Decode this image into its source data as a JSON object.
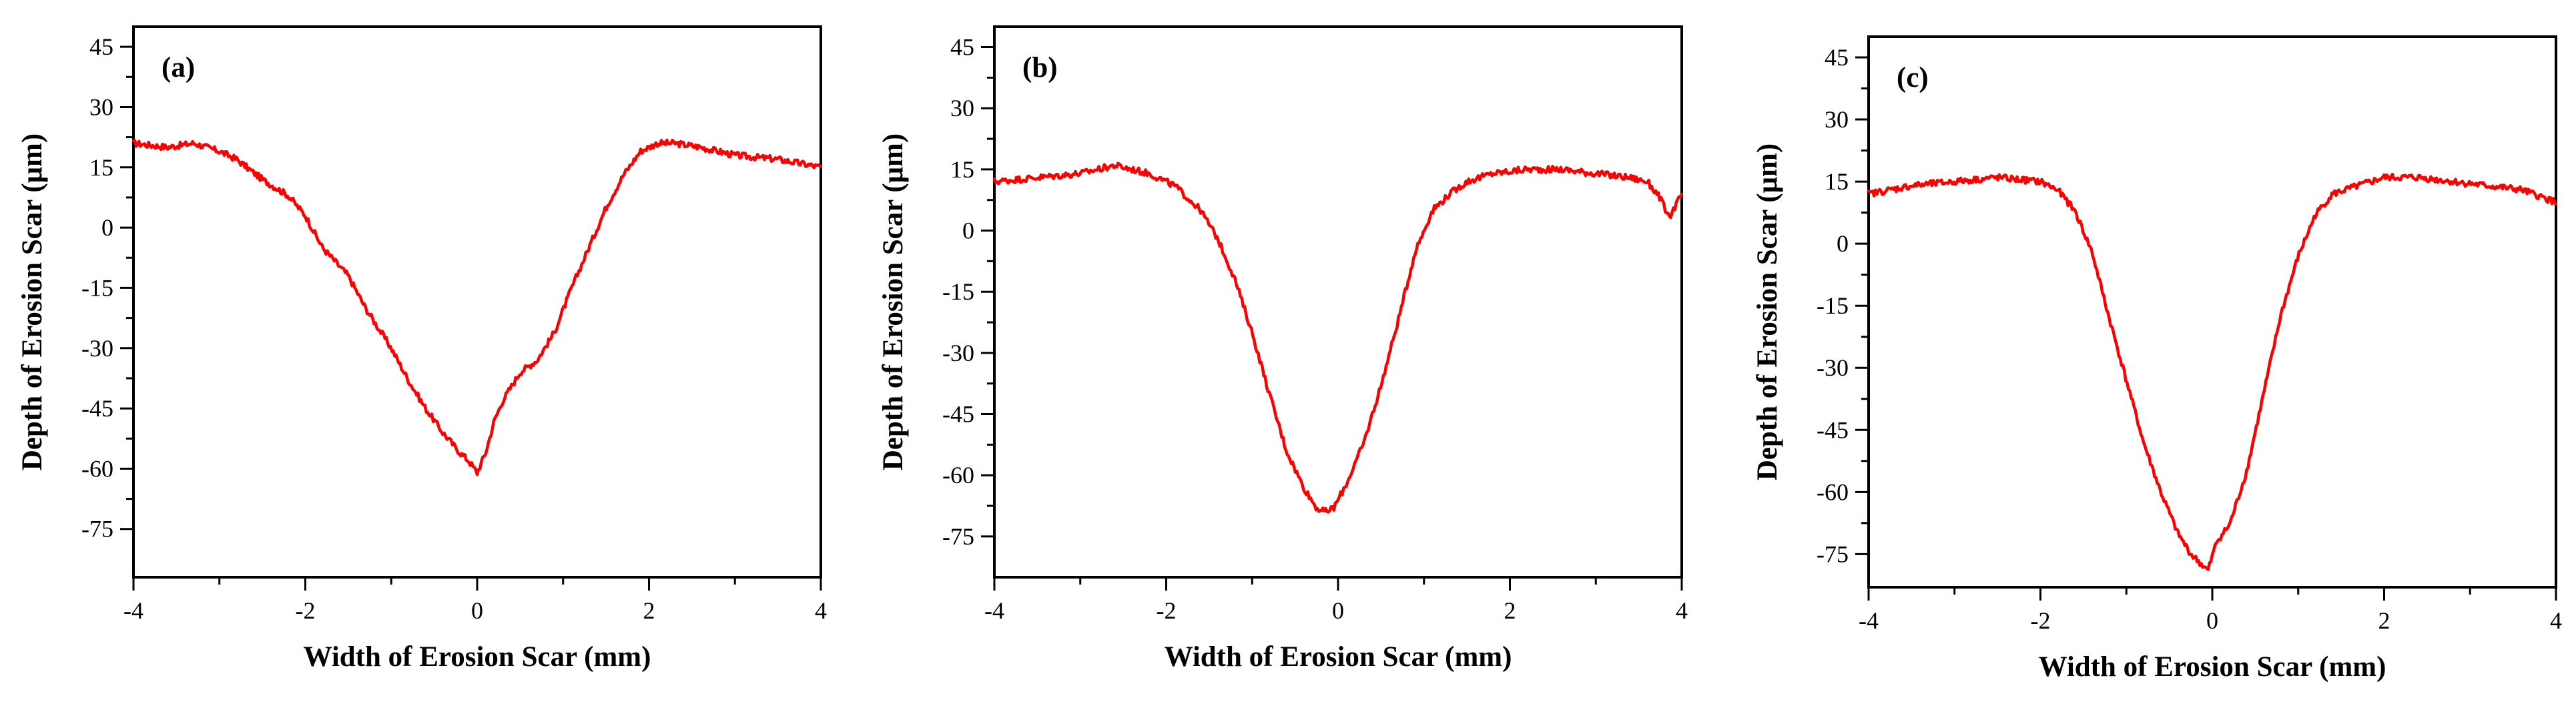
{
  "chart_data": [
    {
      "type": "line",
      "panel_label": "(a)",
      "xlabel": "Width of Erosion Scar (mm)",
      "ylabel": "Depth of Erosion Scar (μm)",
      "xlim": [
        -4,
        4
      ],
      "ylim": [
        -87,
        50
      ],
      "xticks": [
        -4,
        -2,
        0,
        2,
        4
      ],
      "yticks": [
        45,
        30,
        15,
        0,
        -15,
        -30,
        -45,
        -60,
        -75
      ],
      "color": "#ff0000",
      "series": [
        {
          "x": [
            -4.0,
            -3.6,
            -3.3,
            -3.0,
            -2.8,
            -2.5,
            -2.2,
            -2.0,
            -1.8,
            -1.5,
            -1.3,
            -1.0,
            -0.8,
            -0.6,
            -0.4,
            -0.2,
            -0.1,
            0.0,
            0.1,
            0.2,
            0.3,
            0.5,
            0.7,
            0.9,
            1.1,
            1.3,
            1.5,
            1.7,
            1.9,
            2.1,
            2.3,
            2.6,
            3.0,
            3.5,
            4.0
          ],
          "y": [
            21,
            20,
            21,
            19,
            17,
            12,
            8,
            3,
            -5,
            -12,
            -20,
            -30,
            -38,
            -45,
            -51,
            -56,
            -58,
            -61,
            -56,
            -48,
            -43,
            -36,
            -33,
            -26,
            -15,
            -5,
            5,
            13,
            19,
            21,
            21,
            20,
            18,
            17,
            15
          ]
        }
      ]
    },
    {
      "type": "line",
      "panel_label": "(b)",
      "xlabel": "Width of Erosion Scar (mm)",
      "ylabel": "Depth of Erosion Scar (μm)",
      "xlim": [
        -4,
        4
      ],
      "ylim": [
        -85,
        50
      ],
      "xticks": [
        -4,
        -2,
        0,
        2,
        4
      ],
      "yticks": [
        45,
        30,
        15,
        0,
        -15,
        -30,
        -45,
        -60,
        -75
      ],
      "color": "#ff0000",
      "series": [
        {
          "x": [
            -4.0,
            -3.5,
            -3.0,
            -2.6,
            -2.2,
            -1.9,
            -1.6,
            -1.4,
            -1.2,
            -1.0,
            -0.8,
            -0.6,
            -0.4,
            -0.25,
            -0.15,
            -0.05,
            0.1,
            0.3,
            0.5,
            0.7,
            0.9,
            1.1,
            1.3,
            1.5,
            1.8,
            2.2,
            2.6,
            3.0,
            3.4,
            3.6,
            3.75,
            3.85,
            4.0
          ],
          "y": [
            12,
            13,
            14,
            16,
            14,
            11,
            5,
            -2,
            -12,
            -25,
            -40,
            -54,
            -63,
            -68,
            -69,
            -68,
            -62,
            -52,
            -38,
            -22,
            -5,
            5,
            9,
            12,
            14,
            15,
            15,
            14,
            13,
            12,
            8,
            3,
            9
          ]
        }
      ]
    },
    {
      "type": "line",
      "panel_label": "(c)",
      "xlabel": "Width of Erosion Scar (mm)",
      "ylabel": "Depth of Erosion Scar (μm)",
      "xlim": [
        -4,
        4
      ],
      "ylim": [
        -83,
        50
      ],
      "xticks": [
        -4,
        -2,
        0,
        2,
        4
      ],
      "yticks": [
        45,
        30,
        15,
        0,
        -15,
        -30,
        -45,
        -60,
        -75
      ],
      "color": "#ff0000",
      "series": [
        {
          "x": [
            -4.0,
            -3.5,
            -3.0,
            -2.5,
            -2.0,
            -1.8,
            -1.6,
            -1.4,
            -1.2,
            -1.0,
            -0.8,
            -0.6,
            -0.4,
            -0.25,
            -0.15,
            -0.05,
            0.05,
            0.2,
            0.4,
            0.6,
            0.8,
            1.0,
            1.2,
            1.4,
            1.7,
            2.0,
            2.4,
            2.8,
            3.2,
            3.6,
            4.0
          ],
          "y": [
            12,
            14,
            15,
            16,
            15,
            13,
            8,
            -2,
            -18,
            -33,
            -48,
            -60,
            -70,
            -75,
            -77,
            -79,
            -72,
            -68,
            -55,
            -36,
            -17,
            -3,
            7,
            12,
            14,
            16,
            16,
            15,
            14,
            13,
            10
          ]
        }
      ]
    }
  ]
}
